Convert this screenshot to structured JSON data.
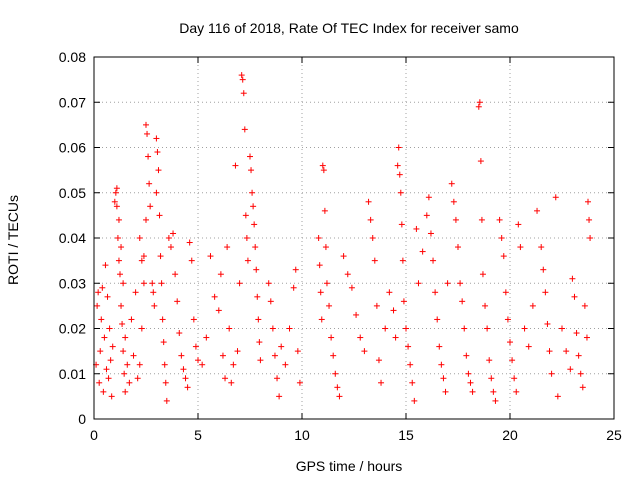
{
  "chart_data": {
    "type": "scatter",
    "title": "Day 116 of 2018, Rate Of TEC Index for receiver samo",
    "xlabel": "GPS time / hours",
    "ylabel": "ROTI / TECUs",
    "xlim": [
      0,
      25
    ],
    "ylim": [
      0,
      0.08
    ],
    "x_ticks": [
      0,
      5,
      10,
      15,
      20,
      25
    ],
    "x_tick_labels": [
      "0",
      "5",
      "10",
      "15",
      "20",
      "25"
    ],
    "y_ticks": [
      0,
      0.01,
      0.02,
      0.03,
      0.04,
      0.05,
      0.06,
      0.07,
      0.08
    ],
    "y_tick_labels": [
      "0",
      "0.01",
      "0.02",
      "0.03",
      "0.04",
      "0.05",
      "0.06",
      "0.07",
      "0.08"
    ],
    "grid": true,
    "marker": "+",
    "series_color": "#ff0000",
    "series": [
      {
        "name": "ROTI",
        "points": [
          [
            0.1,
            0.012
          ],
          [
            0.15,
            0.025
          ],
          [
            0.2,
            0.028
          ],
          [
            0.25,
            0.008
          ],
          [
            0.3,
            0.015
          ],
          [
            0.35,
            0.022
          ],
          [
            0.4,
            0.029
          ],
          [
            0.45,
            0.006
          ],
          [
            0.5,
            0.018
          ],
          [
            0.55,
            0.034
          ],
          [
            0.6,
            0.011
          ],
          [
            0.65,
            0.027
          ],
          [
            0.7,
            0.009
          ],
          [
            0.75,
            0.02
          ],
          [
            0.8,
            0.013
          ],
          [
            0.85,
            0.005
          ],
          [
            0.9,
            0.016
          ],
          [
            1.0,
            0.048
          ],
          [
            1.05,
            0.05
          ],
          [
            1.1,
            0.047
          ],
          [
            1.15,
            0.04
          ],
          [
            1.2,
            0.035
          ],
          [
            1.25,
            0.032
          ],
          [
            1.3,
            0.025
          ],
          [
            1.35,
            0.021
          ],
          [
            1.4,
            0.015
          ],
          [
            1.45,
            0.01
          ],
          [
            1.5,
            0.006
          ],
          [
            1.1,
            0.051
          ],
          [
            1.2,
            0.044
          ],
          [
            1.3,
            0.038
          ],
          [
            1.4,
            0.03
          ],
          [
            1.5,
            0.018
          ],
          [
            1.6,
            0.012
          ],
          [
            1.7,
            0.008
          ],
          [
            1.8,
            0.022
          ],
          [
            1.9,
            0.014
          ],
          [
            2.0,
            0.028
          ],
          [
            2.2,
            0.04
          ],
          [
            2.3,
            0.035
          ],
          [
            2.4,
            0.03
          ],
          [
            2.5,
            0.065
          ],
          [
            2.55,
            0.063
          ],
          [
            2.6,
            0.058
          ],
          [
            2.65,
            0.052
          ],
          [
            2.7,
            0.047
          ],
          [
            2.5,
            0.044
          ],
          [
            2.4,
            0.036
          ],
          [
            2.3,
            0.02
          ],
          [
            2.2,
            0.012
          ],
          [
            2.1,
            0.009
          ],
          [
            2.8,
            0.03
          ],
          [
            2.85,
            0.028
          ],
          [
            2.9,
            0.025
          ],
          [
            3.0,
            0.062
          ],
          [
            3.05,
            0.059
          ],
          [
            3.1,
            0.055
          ],
          [
            3.0,
            0.05
          ],
          [
            3.15,
            0.045
          ],
          [
            3.2,
            0.036
          ],
          [
            3.25,
            0.03
          ],
          [
            3.3,
            0.022
          ],
          [
            3.35,
            0.017
          ],
          [
            3.4,
            0.012
          ],
          [
            3.45,
            0.008
          ],
          [
            3.5,
            0.004
          ],
          [
            3.6,
            0.04
          ],
          [
            3.7,
            0.038
          ],
          [
            3.8,
            0.041
          ],
          [
            3.9,
            0.032
          ],
          [
            4.0,
            0.026
          ],
          [
            4.1,
            0.019
          ],
          [
            4.2,
            0.014
          ],
          [
            4.3,
            0.011
          ],
          [
            4.4,
            0.009
          ],
          [
            4.5,
            0.007
          ],
          [
            4.6,
            0.039
          ],
          [
            4.7,
            0.035
          ],
          [
            4.8,
            0.022
          ],
          [
            4.9,
            0.016
          ],
          [
            5.0,
            0.013
          ],
          [
            5.2,
            0.012
          ],
          [
            5.4,
            0.018
          ],
          [
            5.6,
            0.036
          ],
          [
            5.8,
            0.027
          ],
          [
            6.0,
            0.024
          ],
          [
            6.1,
            0.032
          ],
          [
            6.2,
            0.014
          ],
          [
            6.3,
            0.009
          ],
          [
            6.4,
            0.038
          ],
          [
            6.5,
            0.02
          ],
          [
            6.6,
            0.008
          ],
          [
            6.7,
            0.012
          ],
          [
            6.8,
            0.056
          ],
          [
            6.9,
            0.015
          ],
          [
            7.0,
            0.03
          ],
          [
            7.1,
            0.076
          ],
          [
            7.15,
            0.075
          ],
          [
            7.2,
            0.072
          ],
          [
            7.25,
            0.064
          ],
          [
            7.3,
            0.045
          ],
          [
            7.35,
            0.04
          ],
          [
            7.4,
            0.035
          ],
          [
            7.5,
            0.058
          ],
          [
            7.55,
            0.055
          ],
          [
            7.6,
            0.05
          ],
          [
            7.65,
            0.047
          ],
          [
            7.7,
            0.043
          ],
          [
            7.75,
            0.038
          ],
          [
            7.8,
            0.033
          ],
          [
            7.85,
            0.027
          ],
          [
            7.9,
            0.022
          ],
          [
            7.95,
            0.017
          ],
          [
            8.0,
            0.013
          ],
          [
            8.4,
            0.03
          ],
          [
            8.5,
            0.026
          ],
          [
            8.6,
            0.02
          ],
          [
            8.7,
            0.014
          ],
          [
            8.8,
            0.009
          ],
          [
            8.9,
            0.005
          ],
          [
            9.0,
            0.016
          ],
          [
            9.2,
            0.012
          ],
          [
            9.4,
            0.02
          ],
          [
            9.6,
            0.029
          ],
          [
            9.7,
            0.033
          ],
          [
            9.8,
            0.015
          ],
          [
            9.9,
            0.008
          ],
          [
            10.8,
            0.04
          ],
          [
            10.85,
            0.034
          ],
          [
            10.9,
            0.028
          ],
          [
            10.95,
            0.022
          ],
          [
            11.0,
            0.056
          ],
          [
            11.05,
            0.055
          ],
          [
            11.1,
            0.046
          ],
          [
            11.15,
            0.038
          ],
          [
            11.2,
            0.03
          ],
          [
            11.3,
            0.025
          ],
          [
            11.4,
            0.018
          ],
          [
            11.5,
            0.014
          ],
          [
            11.6,
            0.01
          ],
          [
            11.7,
            0.007
          ],
          [
            11.8,
            0.005
          ],
          [
            12.0,
            0.036
          ],
          [
            12.2,
            0.032
          ],
          [
            12.4,
            0.029
          ],
          [
            12.6,
            0.023
          ],
          [
            12.8,
            0.018
          ],
          [
            13.0,
            0.015
          ],
          [
            13.2,
            0.048
          ],
          [
            13.3,
            0.044
          ],
          [
            13.4,
            0.04
          ],
          [
            13.5,
            0.035
          ],
          [
            13.6,
            0.025
          ],
          [
            13.7,
            0.013
          ],
          [
            13.8,
            0.008
          ],
          [
            14.0,
            0.02
          ],
          [
            14.2,
            0.028
          ],
          [
            14.4,
            0.024
          ],
          [
            14.5,
            0.018
          ],
          [
            14.6,
            0.056
          ],
          [
            14.65,
            0.06
          ],
          [
            14.7,
            0.054
          ],
          [
            14.75,
            0.05
          ],
          [
            14.8,
            0.043
          ],
          [
            14.85,
            0.035
          ],
          [
            14.9,
            0.026
          ],
          [
            15.0,
            0.02
          ],
          [
            15.1,
            0.016
          ],
          [
            15.2,
            0.012
          ],
          [
            15.3,
            0.008
          ],
          [
            15.4,
            0.004
          ],
          [
            15.5,
            0.042
          ],
          [
            15.6,
            0.03
          ],
          [
            15.8,
            0.037
          ],
          [
            16.0,
            0.045
          ],
          [
            16.1,
            0.049
          ],
          [
            16.2,
            0.041
          ],
          [
            16.3,
            0.035
          ],
          [
            16.4,
            0.028
          ],
          [
            16.5,
            0.022
          ],
          [
            16.6,
            0.016
          ],
          [
            16.7,
            0.012
          ],
          [
            16.8,
            0.009
          ],
          [
            16.9,
            0.006
          ],
          [
            17.0,
            0.03
          ],
          [
            17.2,
            0.052
          ],
          [
            17.3,
            0.048
          ],
          [
            17.4,
            0.044
          ],
          [
            17.5,
            0.038
          ],
          [
            17.6,
            0.03
          ],
          [
            17.7,
            0.026
          ],
          [
            17.8,
            0.02
          ],
          [
            17.9,
            0.014
          ],
          [
            18.0,
            0.01
          ],
          [
            18.1,
            0.008
          ],
          [
            18.2,
            0.006
          ],
          [
            18.5,
            0.069
          ],
          [
            18.55,
            0.07
          ],
          [
            18.6,
            0.057
          ],
          [
            18.65,
            0.044
          ],
          [
            18.7,
            0.032
          ],
          [
            18.8,
            0.025
          ],
          [
            18.9,
            0.02
          ],
          [
            19.0,
            0.013
          ],
          [
            19.1,
            0.009
          ],
          [
            19.2,
            0.006
          ],
          [
            19.3,
            0.004
          ],
          [
            19.5,
            0.044
          ],
          [
            19.6,
            0.04
          ],
          [
            19.7,
            0.036
          ],
          [
            19.8,
            0.028
          ],
          [
            19.9,
            0.022
          ],
          [
            20.0,
            0.017
          ],
          [
            20.1,
            0.013
          ],
          [
            20.2,
            0.009
          ],
          [
            20.3,
            0.006
          ],
          [
            20.4,
            0.043
          ],
          [
            20.5,
            0.038
          ],
          [
            20.7,
            0.02
          ],
          [
            20.9,
            0.016
          ],
          [
            21.1,
            0.025
          ],
          [
            21.3,
            0.046
          ],
          [
            21.5,
            0.038
          ],
          [
            21.6,
            0.033
          ],
          [
            21.7,
            0.028
          ],
          [
            21.8,
            0.021
          ],
          [
            21.9,
            0.015
          ],
          [
            22.0,
            0.01
          ],
          [
            22.2,
            0.049
          ],
          [
            22.3,
            0.005
          ],
          [
            22.5,
            0.02
          ],
          [
            22.7,
            0.015
          ],
          [
            22.9,
            0.011
          ],
          [
            23.0,
            0.031
          ],
          [
            23.1,
            0.027
          ],
          [
            23.2,
            0.019
          ],
          [
            23.3,
            0.014
          ],
          [
            23.4,
            0.01
          ],
          [
            23.5,
            0.007
          ],
          [
            23.6,
            0.025
          ],
          [
            23.7,
            0.018
          ],
          [
            23.75,
            0.048
          ],
          [
            23.8,
            0.044
          ],
          [
            23.85,
            0.04
          ]
        ]
      }
    ]
  }
}
